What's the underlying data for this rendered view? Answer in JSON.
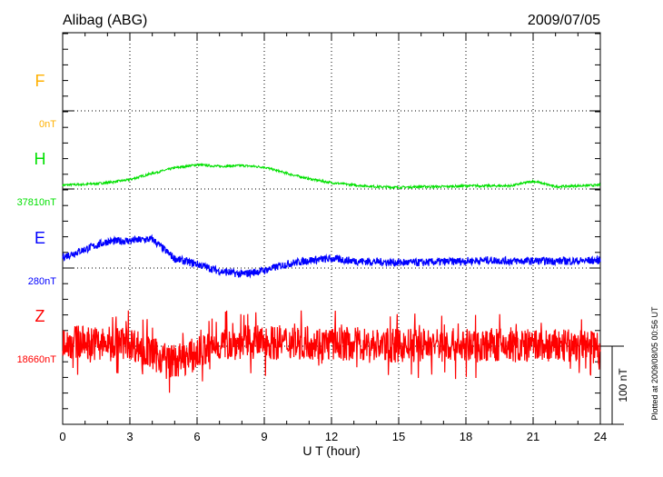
{
  "chart_data": {
    "type": "line",
    "title": "Alibag (ABG)",
    "date": "2009/07/05",
    "xlabel": "U T (hour)",
    "xlim": [
      0,
      24
    ],
    "xticks": [
      "0",
      "3",
      "6",
      "9",
      "12",
      "15",
      "18",
      "21",
      "24"
    ],
    "scale_label": "100 nT",
    "scale_nT": 100,
    "footer": "Plotted at 2009/08/05 00:56 UT",
    "hours": [
      0,
      1,
      2,
      3,
      4,
      5,
      6,
      7,
      8,
      9,
      10,
      11,
      12,
      13,
      14,
      15,
      16,
      17,
      18,
      19,
      20,
      21,
      22,
      23,
      24
    ],
    "series": [
      {
        "name": "F",
        "baseline": "0nT",
        "color": "#ffb000",
        "values": []
      },
      {
        "name": "H",
        "baseline": "37810nT",
        "color": "#00e000",
        "noise": 1.5,
        "values": [
          5,
          6,
          8,
          12,
          20,
          27,
          31,
          29,
          30,
          28,
          20,
          13,
          8,
          5,
          3,
          2,
          3,
          3,
          4,
          4,
          4,
          10,
          3,
          4,
          5
        ]
      },
      {
        "name": "E",
        "baseline": "280nT",
        "color": "#0000ff",
        "noise": 5,
        "values": [
          14,
          24,
          34,
          35,
          37,
          12,
          5,
          -4,
          -8,
          -3,
          5,
          10,
          12,
          9,
          8,
          7,
          7,
          8,
          9,
          10,
          9,
          9,
          9,
          9,
          10
        ]
      },
      {
        "name": "Z",
        "baseline": "18660nT",
        "color": "#ff0000",
        "noise": 22,
        "values": [
          5,
          5,
          3,
          5,
          -10,
          -20,
          -10,
          3,
          5,
          5,
          5,
          5,
          3,
          3,
          2,
          0,
          2,
          2,
          0,
          2,
          0,
          0,
          0,
          0,
          0
        ]
      }
    ]
  }
}
